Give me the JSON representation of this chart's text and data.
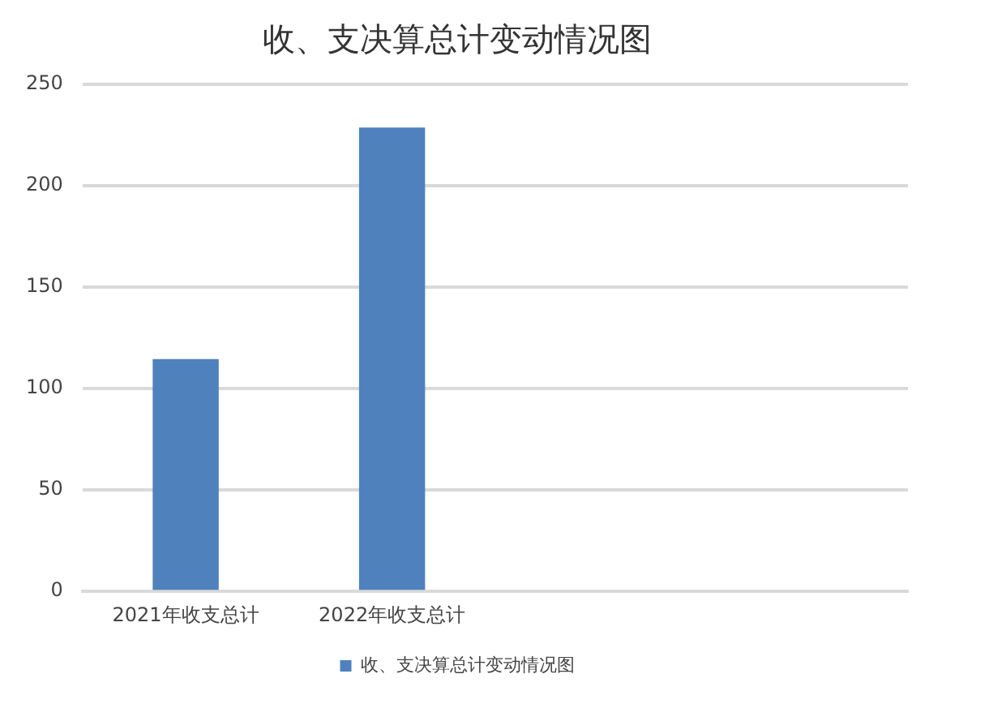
{
  "chart_data": {
    "type": "bar",
    "title": "收、支决算总计变动情况图",
    "categories": [
      "2021年收支总计",
      "2022年收支总计",
      null,
      null
    ],
    "series": [
      {
        "name": "收、支决算总计变动情况图",
        "color": "#4f81bd",
        "values": [
          114.5,
          228.7,
          null,
          null
        ]
      }
    ],
    "ylim": [
      0,
      250
    ],
    "yticks": [
      0,
      50,
      100,
      150,
      200,
      250
    ],
    "grid": "y",
    "legend": "bottom"
  }
}
